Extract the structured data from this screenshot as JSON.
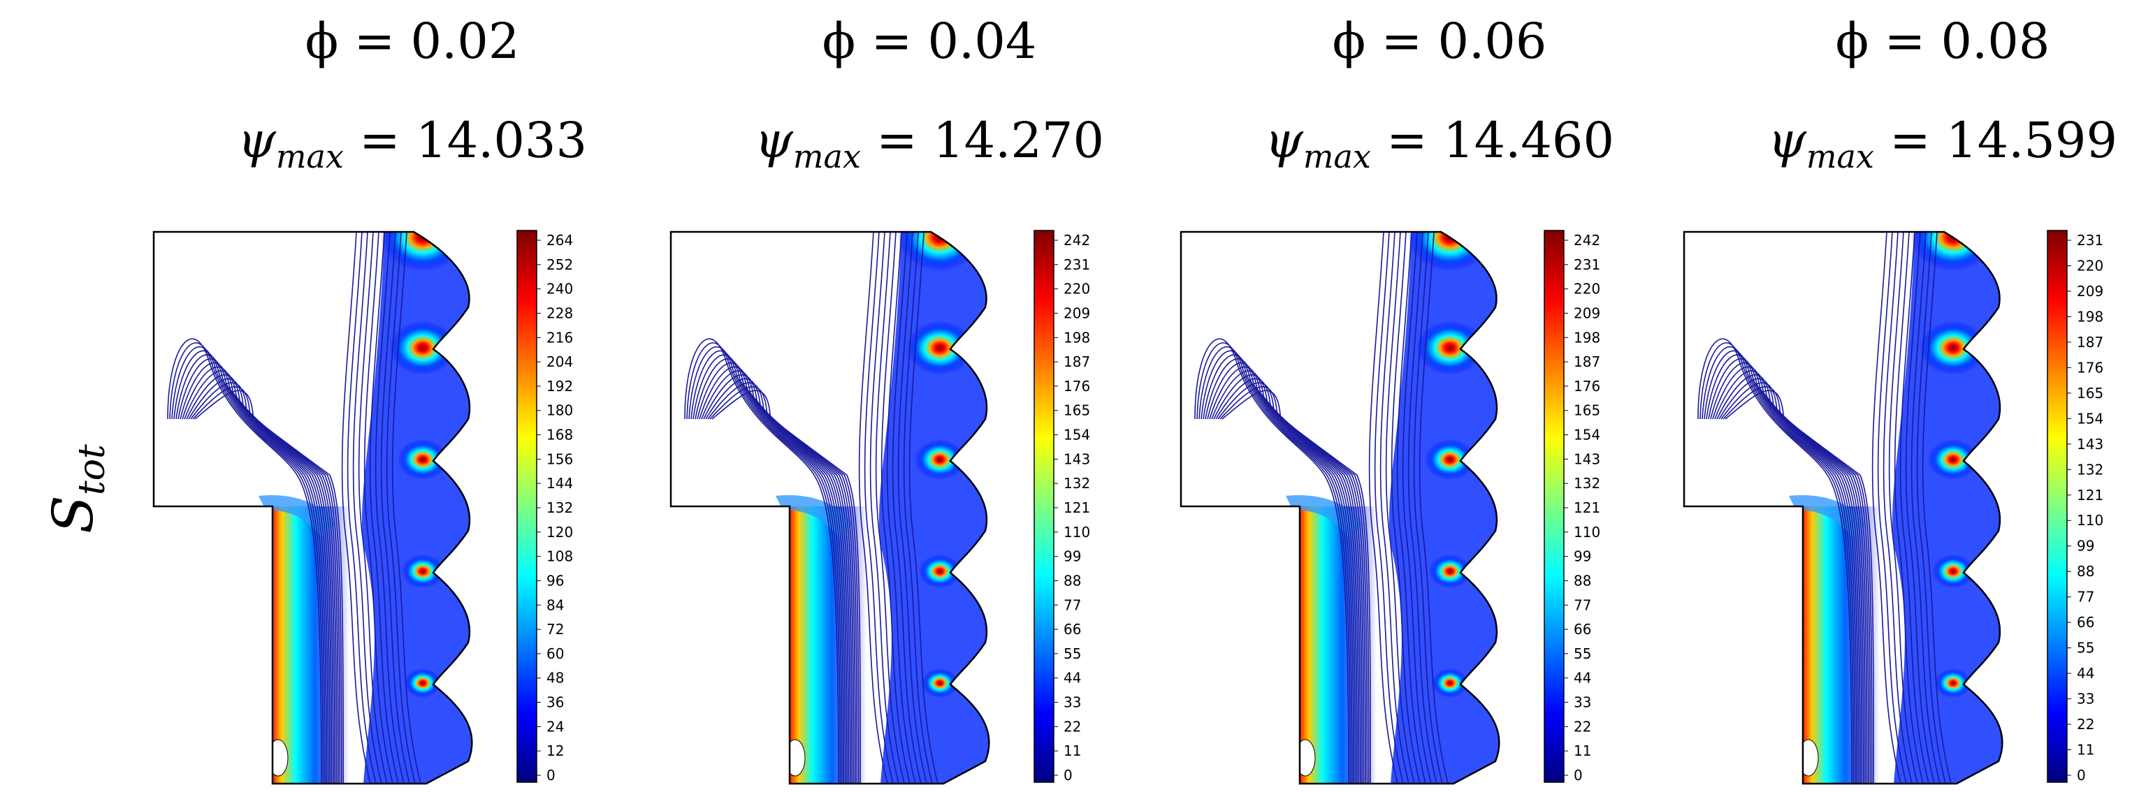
{
  "row_label": {
    "symbol": "S",
    "subscript": "tot"
  },
  "colormap": [
    "#00007f",
    "#0000ff",
    "#007fff",
    "#00ffff",
    "#7fff7f",
    "#ffff00",
    "#ff7f00",
    "#ff0000",
    "#7f0000"
  ],
  "contour_color": "#1a1a9c",
  "panels": [
    {
      "phi_label": "ϕ = 0.02",
      "psi_symbol": "ψ",
      "psi_sub": "max",
      "psi_value": "= 14.033",
      "ticks": [
        "0",
        "12",
        "24",
        "36",
        "48",
        "60",
        "72",
        "84",
        "96",
        "108",
        "120",
        "132",
        "144",
        "156",
        "168",
        "180",
        "192",
        "204",
        "216",
        "228",
        "240",
        "252",
        "264"
      ]
    },
    {
      "phi_label": "ϕ = 0.04",
      "psi_symbol": "ψ",
      "psi_sub": "max",
      "psi_value": "= 14.270",
      "ticks": [
        "0",
        "11",
        "22",
        "33",
        "44",
        "55",
        "66",
        "77",
        "88",
        "99",
        "110",
        "121",
        "132",
        "143",
        "154",
        "165",
        "176",
        "187",
        "198",
        "209",
        "220",
        "231",
        "242"
      ]
    },
    {
      "phi_label": "ϕ = 0.06",
      "psi_symbol": "ψ",
      "psi_sub": "max",
      "psi_value": "= 14.460",
      "ticks": [
        "0",
        "11",
        "22",
        "33",
        "44",
        "55",
        "66",
        "77",
        "88",
        "99",
        "110",
        "121",
        "132",
        "143",
        "154",
        "165",
        "176",
        "187",
        "198",
        "209",
        "220",
        "231",
        "242"
      ]
    },
    {
      "phi_label": "ϕ = 0.08",
      "psi_symbol": "ψ",
      "psi_sub": "max",
      "psi_value": "= 14.599",
      "ticks": [
        "0",
        "11",
        "22",
        "33",
        "44",
        "55",
        "66",
        "77",
        "88",
        "99",
        "110",
        "121",
        "132",
        "143",
        "154",
        "165",
        "176",
        "187",
        "198",
        "209",
        "220",
        "231"
      ]
    }
  ]
}
